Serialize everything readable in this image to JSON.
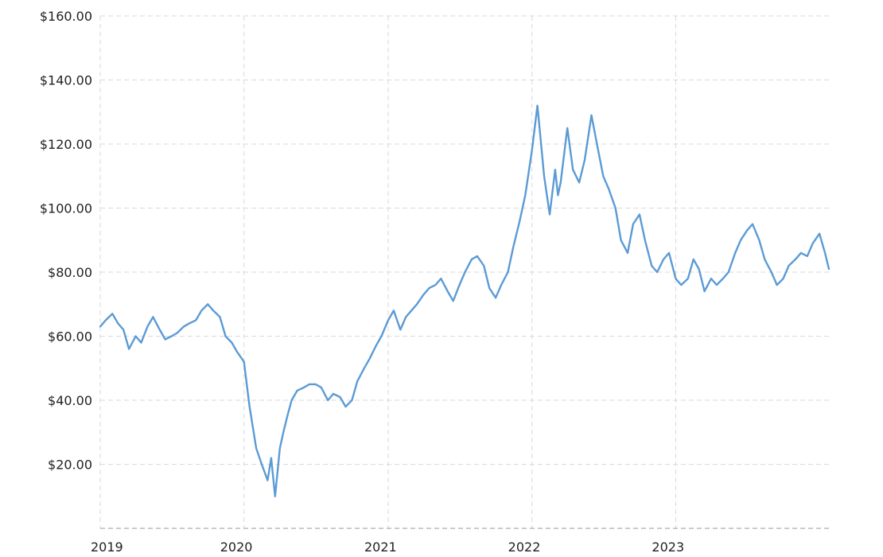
{
  "chart_data": {
    "type": "line",
    "title": "",
    "xlabel": "",
    "ylabel": "",
    "ylim": [
      0,
      160
    ],
    "xlim": [
      "2019-01-01",
      "2024-01-31"
    ],
    "grid": true,
    "line_color": "#5b9bd5",
    "grid_color": "#d9d9d9",
    "y_ticks": [
      20,
      40,
      60,
      80,
      100,
      120,
      140,
      160
    ],
    "y_tick_labels": [
      "$20.00",
      "$40.00",
      "$60.00",
      "$80.00",
      "$100.00",
      "$120.00",
      "$140.00",
      "$160.00"
    ],
    "x_ticks": [
      "2019-01-01",
      "2020-01-01",
      "2021-01-01",
      "2022-01-01",
      "2023-01-01"
    ],
    "x_tick_labels": [
      "2019",
      "2020",
      "2021",
      "2022",
      "2023"
    ],
    "series": [
      {
        "x": [
          "2019-01-01",
          "2019-01-15",
          "2019-02-01",
          "2019-02-15",
          "2019-03-01",
          "2019-03-15",
          "2019-04-01",
          "2019-04-15",
          "2019-05-01",
          "2019-05-15",
          "2019-06-01",
          "2019-06-15",
          "2019-07-01",
          "2019-07-15",
          "2019-08-01",
          "2019-08-15",
          "2019-09-01",
          "2019-09-15",
          "2019-10-01",
          "2019-10-15",
          "2019-11-01",
          "2019-11-15",
          "2019-12-01",
          "2019-12-15",
          "2020-01-01",
          "2020-01-15",
          "2020-02-01",
          "2020-02-15",
          "2020-03-01",
          "2020-03-10",
          "2020-03-20",
          "2020-04-01",
          "2020-04-10",
          "2020-04-20",
          "2020-05-01",
          "2020-05-15",
          "2020-06-01",
          "2020-06-15",
          "2020-07-01",
          "2020-07-15",
          "2020-08-01",
          "2020-08-15",
          "2020-09-01",
          "2020-09-15",
          "2020-10-01",
          "2020-10-15",
          "2020-11-01",
          "2020-11-15",
          "2020-12-01",
          "2020-12-15",
          "2021-01-01",
          "2021-01-15",
          "2021-02-01",
          "2021-02-15",
          "2021-03-01",
          "2021-03-15",
          "2021-04-01",
          "2021-04-15",
          "2021-05-01",
          "2021-05-15",
          "2021-06-01",
          "2021-06-15",
          "2021-07-01",
          "2021-07-15",
          "2021-08-01",
          "2021-08-15",
          "2021-09-01",
          "2021-09-15",
          "2021-10-01",
          "2021-10-15",
          "2021-11-01",
          "2021-11-15",
          "2021-12-01",
          "2021-12-15",
          "2022-01-01",
          "2022-01-15",
          "2022-02-01",
          "2022-02-15",
          "2022-03-01",
          "2022-03-08",
          "2022-03-15",
          "2022-04-01",
          "2022-04-15",
          "2022-05-01",
          "2022-05-15",
          "2022-06-01",
          "2022-06-15",
          "2022-07-01",
          "2022-07-15",
          "2022-08-01",
          "2022-08-15",
          "2022-09-01",
          "2022-09-15",
          "2022-10-01",
          "2022-10-15",
          "2022-11-01",
          "2022-11-15",
          "2022-12-01",
          "2022-12-15",
          "2023-01-01",
          "2023-01-15",
          "2023-02-01",
          "2023-02-15",
          "2023-03-01",
          "2023-03-15",
          "2023-04-01",
          "2023-04-15",
          "2023-05-01",
          "2023-05-15",
          "2023-06-01",
          "2023-06-15",
          "2023-07-01",
          "2023-07-15",
          "2023-08-01",
          "2023-08-15",
          "2023-09-01",
          "2023-09-15",
          "2023-10-01",
          "2023-10-15",
          "2023-11-01",
          "2023-11-15",
          "2023-12-01",
          "2023-12-15",
          "2024-01-01",
          "2024-01-15",
          "2024-01-25"
        ],
        "y": [
          63,
          65,
          67,
          64,
          62,
          56,
          60,
          58,
          63,
          66,
          62,
          59,
          60,
          61,
          63,
          64,
          65,
          68,
          70,
          68,
          66,
          60,
          58,
          55,
          52,
          38,
          25,
          20,
          15,
          22,
          10,
          25,
          30,
          35,
          40,
          43,
          44,
          45,
          45,
          44,
          40,
          42,
          41,
          38,
          40,
          46,
          50,
          53,
          57,
          60,
          65,
          68,
          62,
          66,
          68,
          70,
          73,
          75,
          76,
          78,
          74,
          71,
          76,
          80,
          84,
          85,
          82,
          75,
          72,
          76,
          80,
          88,
          96,
          104,
          118,
          132,
          110,
          98,
          112,
          104,
          108,
          125,
          112,
          108,
          115,
          129,
          120,
          110,
          106,
          100,
          90,
          86,
          95,
          98,
          90,
          82,
          80,
          84,
          86,
          78,
          76,
          78,
          84,
          81,
          74,
          78,
          76,
          78,
          80,
          86,
          90,
          93,
          95,
          90,
          84,
          80,
          76,
          78,
          82,
          84,
          86,
          85,
          89,
          92,
          86,
          81
        ]
      }
    ]
  }
}
